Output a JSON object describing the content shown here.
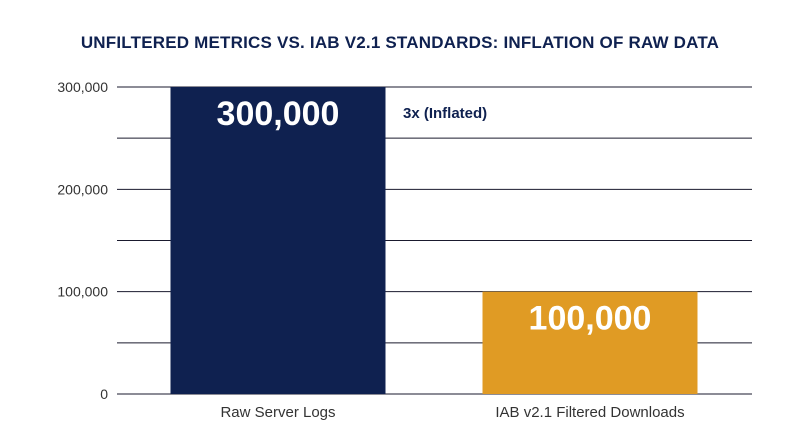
{
  "chart_data": {
    "type": "bar",
    "title": "UNFILTERED METRICS VS. IAB V2.1 STANDARDS: INFLATION OF RAW DATA",
    "categories": [
      "Raw Server Logs",
      "IAB v2.1 Filtered Downloads"
    ],
    "values": [
      300000,
      100000
    ],
    "value_labels": [
      "300,000",
      "100,000"
    ],
    "bar_colors": [
      "#0f2150",
      "#e09b24"
    ],
    "annotation": "3x (Inflated)",
    "ylim": [
      0,
      300000
    ],
    "y_ticks": [
      0,
      100000,
      200000,
      300000
    ],
    "y_tick_labels": [
      "0",
      "100,000",
      "200,000",
      "300,000"
    ],
    "grid": true,
    "xlabel": "",
    "ylabel": ""
  }
}
